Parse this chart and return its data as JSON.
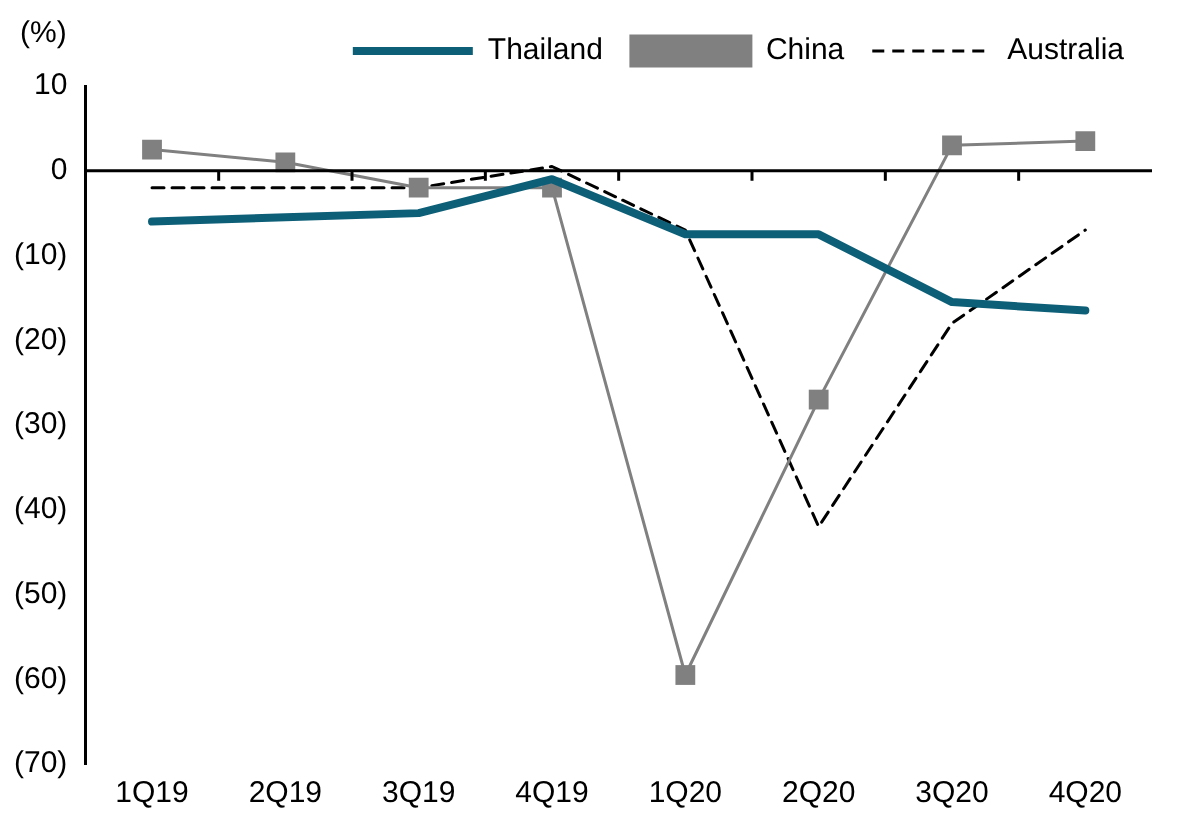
{
  "chart_data": {
    "type": "line",
    "ylabel": "(%)",
    "categories": [
      "1Q19",
      "2Q19",
      "3Q19",
      "4Q19",
      "1Q20",
      "2Q20",
      "3Q20",
      "4Q20"
    ],
    "series": [
      {
        "name": "Thailand",
        "color": "#0d5f78",
        "marker": "none",
        "line_style": "solid",
        "values": [
          -6,
          -5.5,
          -5,
          -1,
          -7.5,
          -7.5,
          -15.5,
          -16.5
        ]
      },
      {
        "name": "China",
        "color": "#808080",
        "marker": "square",
        "line_style": "solid",
        "values": [
          2.5,
          1,
          -2,
          -2,
          -59.5,
          -27,
          3,
          3.5
        ]
      },
      {
        "name": "Australia",
        "color": "#000000",
        "marker": "none",
        "line_style": "dashed",
        "values": [
          -2,
          -2,
          -2,
          0.5,
          -7,
          -42,
          -18,
          -7
        ]
      }
    ],
    "ylim": [
      -70,
      10
    ],
    "yticks": [
      10,
      0,
      {
        "value": -10,
        "label": "(10)"
      },
      {
        "value": -20,
        "label": "(20)"
      },
      {
        "value": -30,
        "label": "(30)"
      },
      {
        "value": -40,
        "label": "(40)"
      },
      {
        "value": -50,
        "label": "(50)"
      },
      {
        "value": -60,
        "label": "(60)"
      },
      {
        "value": -70,
        "label": "(70)"
      }
    ],
    "legend": "top"
  }
}
